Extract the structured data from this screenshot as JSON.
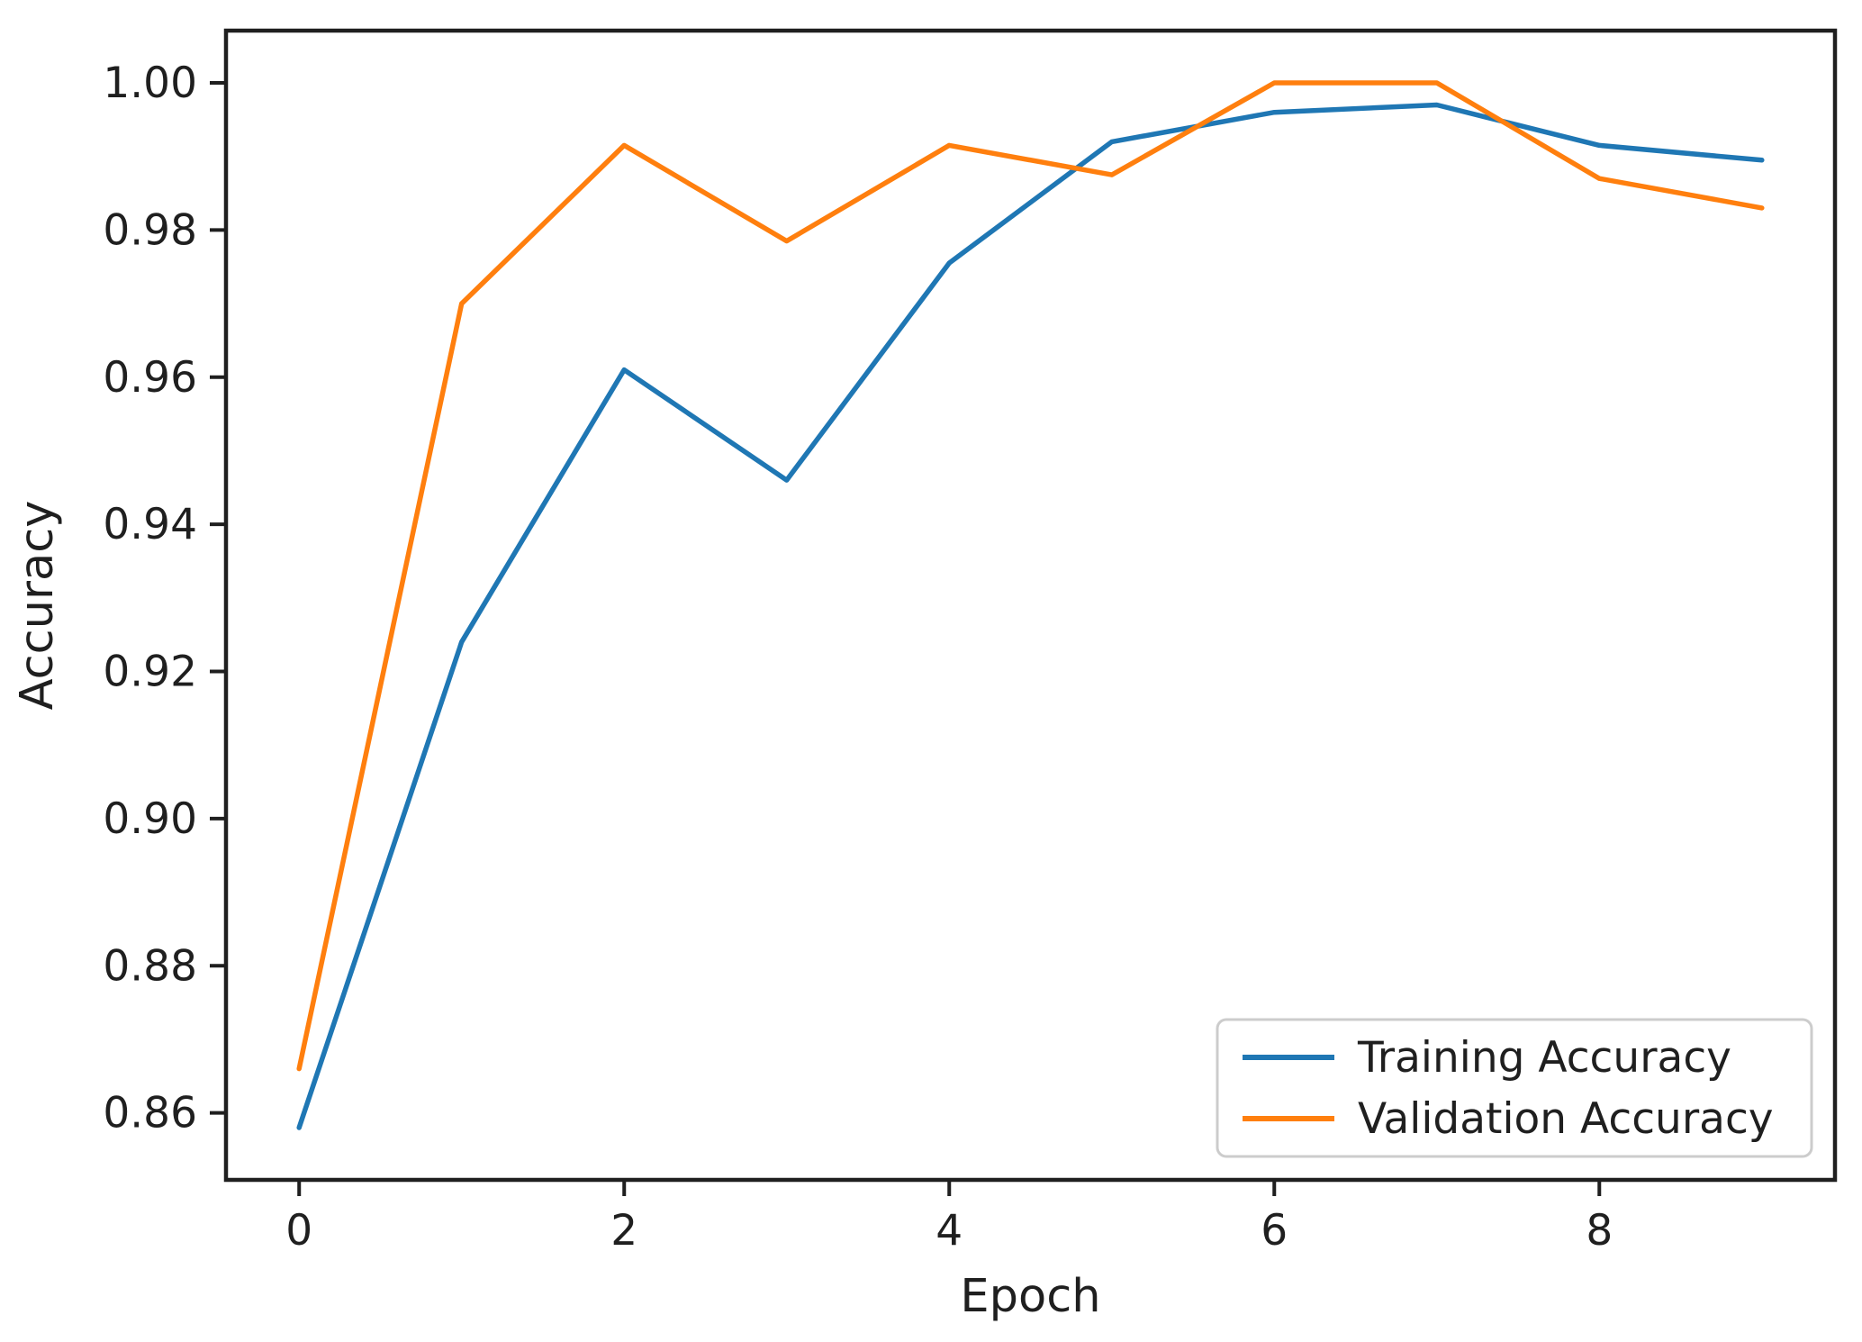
{
  "figure": {
    "background": "#ffffff",
    "axis_color": "#1f1f1f",
    "spine_color": "#1f1f1f",
    "legend_border_color": "#cccccc",
    "legend_background": "#ffffff"
  },
  "chart_data": {
    "type": "line",
    "title": "",
    "xlabel": "Epoch",
    "ylabel": "Accuracy",
    "x": [
      0,
      1,
      2,
      3,
      4,
      5,
      6,
      7,
      8,
      9
    ],
    "series": [
      {
        "name": "Training Accuracy",
        "color": "#1f77b4",
        "values": [
          0.858,
          0.924,
          0.961,
          0.946,
          0.9755,
          0.992,
          0.996,
          0.997,
          0.9915,
          0.9895
        ]
      },
      {
        "name": "Validation Accuracy",
        "color": "#ff7f0e",
        "values": [
          0.866,
          0.97,
          0.9915,
          0.9785,
          0.9915,
          0.9875,
          1.0,
          1.0,
          0.987,
          0.983
        ]
      }
    ],
    "xlim": [
      -0.45,
      9.45
    ],
    "ylim": [
      0.8509,
      1.0071
    ],
    "xticks": {
      "values": [
        0,
        2,
        4,
        6,
        8
      ],
      "labels": [
        "0",
        "2",
        "4",
        "6",
        "8"
      ]
    },
    "yticks": {
      "values": [
        0.86,
        0.88,
        0.9,
        0.92,
        0.94,
        0.96,
        0.98,
        1.0
      ],
      "labels": [
        "0.86",
        "0.88",
        "0.90",
        "0.92",
        "0.94",
        "0.96",
        "0.98",
        "1.00"
      ]
    },
    "grid": false,
    "legend": {
      "position": "lower right",
      "entries": [
        "Training Accuracy",
        "Validation Accuracy"
      ]
    }
  }
}
